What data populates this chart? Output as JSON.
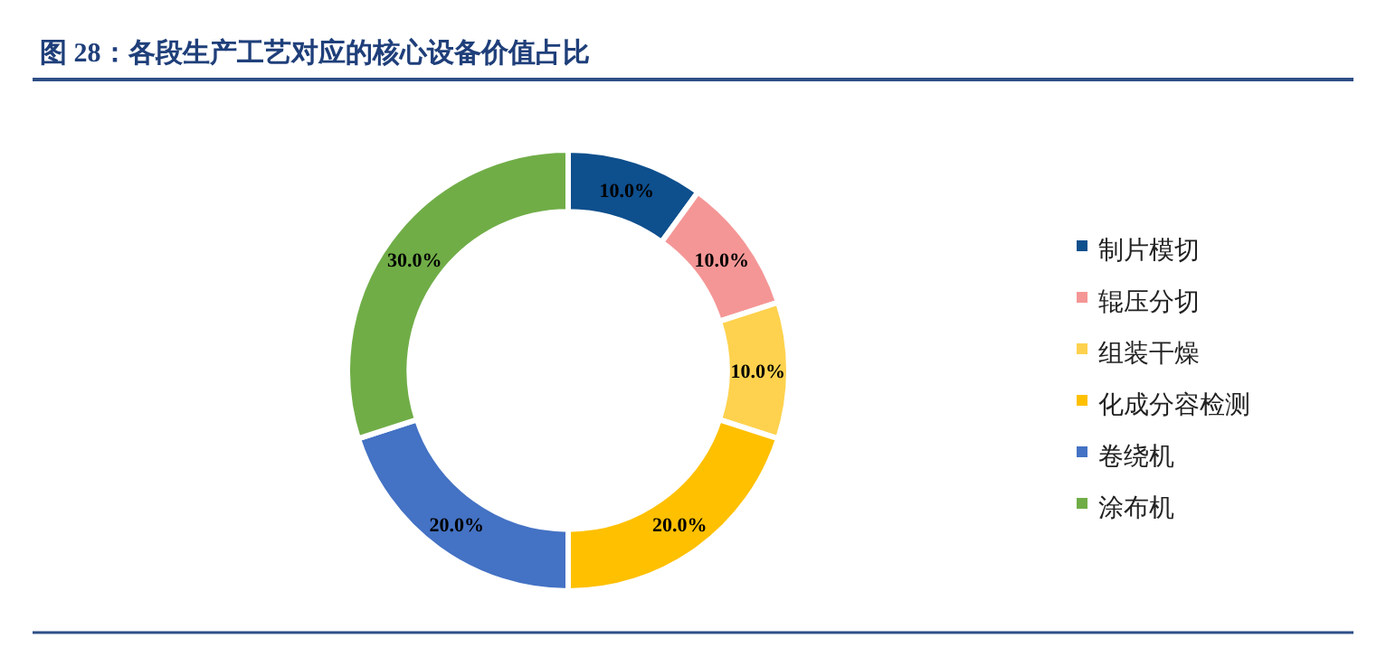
{
  "chart_data": {
    "type": "donut",
    "title": "图 28：各段生产工艺对应的核心设备价值占比",
    "categories": [
      "制片模切",
      "辊压分切",
      "组装干燥",
      "化成分容检测",
      "卷绕机",
      "涂布机"
    ],
    "values": [
      10,
      10,
      10,
      20,
      20,
      30
    ],
    "colors": [
      "#0e4f8d",
      "#f59696",
      "#fed24e",
      "#ffc000",
      "#4472c4",
      "#70ad47"
    ],
    "value_labels": [
      "10.0%",
      "10.0%",
      "10.0%",
      "20.0%",
      "20.0%",
      "30.0%"
    ],
    "legend": "right"
  }
}
